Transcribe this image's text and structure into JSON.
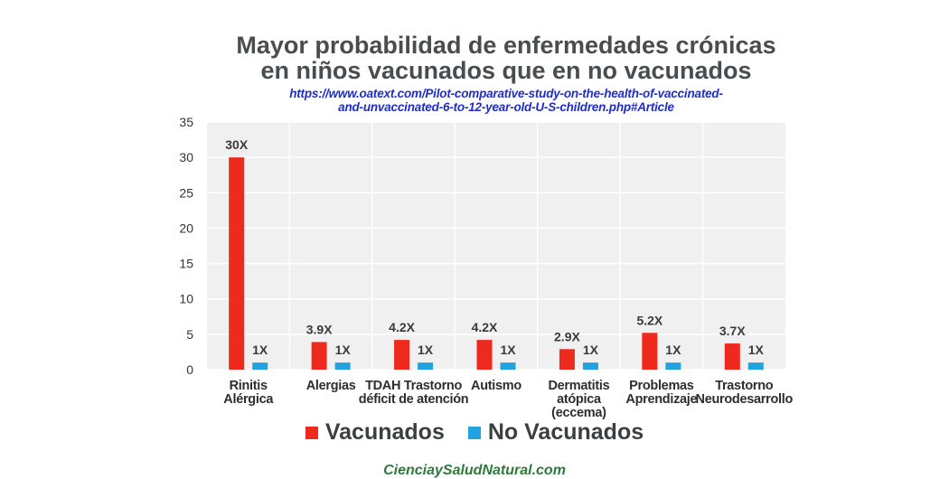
{
  "title_line1": "Mayor probabilidad de enfermedades crónicas",
  "title_line2": "en niños vacunados que en no vacunados",
  "source_line1": "https://www.oatext.com/Pilot-comparative-study-on-the-health-of-vaccinated-",
  "source_line2": "and-unvaccinated-6-to-12-year-old-U-S-children.php#Article",
  "footer": "CienciaySaludNatural.com",
  "colors": {
    "vaccinated": "#ee2a1f",
    "unvaccinated": "#22a3df",
    "plot_bg": "#f0f0f0",
    "grid": "#ffffff"
  },
  "chart_data": {
    "type": "bar",
    "categories": [
      [
        "Rinitis",
        "Alérgica"
      ],
      [
        "Alergias"
      ],
      [
        "TDAH Trastorno",
        "déficit de atención"
      ],
      [
        "Autismo"
      ],
      [
        "Dermatitis",
        "atópica",
        "(eccema)"
      ],
      [
        "Problemas",
        "Aprendizaje"
      ],
      [
        "Trastorno",
        "Neurodesarrollo"
      ]
    ],
    "series": [
      {
        "name": "Vacunados",
        "values": [
          30,
          3.9,
          4.2,
          4.2,
          2.9,
          5.2,
          3.7
        ],
        "labels": [
          "30X",
          "3.9X",
          "4.2X",
          "4.2X",
          "2.9X",
          "5.2X",
          "3.7X"
        ]
      },
      {
        "name": "No Vacunados",
        "values": [
          1,
          1,
          1,
          1,
          1,
          1,
          1
        ],
        "labels": [
          "1X",
          "1X",
          "1X",
          "1X",
          "1X",
          "1X",
          "1X"
        ]
      }
    ],
    "yticks": [
      0,
      5,
      10,
      15,
      20,
      25,
      30,
      35
    ],
    "ylim": [
      0,
      35
    ],
    "grid": true,
    "legend_position": "bottom"
  }
}
